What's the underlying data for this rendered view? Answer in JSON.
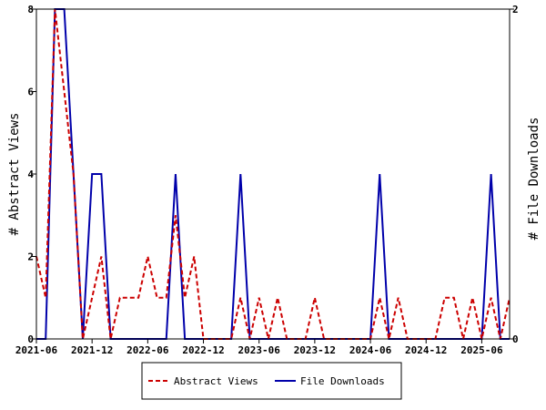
{
  "chart_data": {
    "type": "line",
    "title": "",
    "x_ticks": [
      "2021-06",
      "2021-12",
      "2022-06",
      "2022-12",
      "2023-06",
      "2023-12",
      "2024-06",
      "2024-12",
      "2025-06"
    ],
    "x_range": [
      "2021-06",
      "2025-07"
    ],
    "left_axis": {
      "label": "# Abstract Views",
      "ticks": [
        0,
        2,
        4,
        6,
        8
      ],
      "range": [
        0,
        8
      ]
    },
    "right_axis": {
      "label": "# File Downloads",
      "ticks": [
        0,
        2
      ],
      "range": [
        0,
        2
      ]
    },
    "legend": {
      "placement": "bottom"
    },
    "series": [
      {
        "name": "Abstract Views",
        "axis": "left",
        "color": "#cc0000",
        "style": "dashed",
        "values": [
          2,
          1,
          8,
          6,
          4,
          0,
          1,
          2,
          0,
          1,
          1,
          1,
          2,
          1,
          1,
          3,
          1,
          2,
          0,
          0,
          0,
          0,
          1,
          0,
          1,
          0,
          1,
          0,
          0,
          0,
          1,
          0,
          0,
          0,
          0,
          0,
          0,
          1,
          0,
          1,
          0,
          0,
          0,
          0,
          1,
          1,
          0,
          1,
          0,
          1,
          0,
          1
        ]
      },
      {
        "name": "File Downloads",
        "axis": "right",
        "color": "#0000aa",
        "style": "solid",
        "values": [
          0,
          0,
          2,
          2,
          1,
          0,
          1,
          1,
          0,
          0,
          0,
          0,
          0,
          0,
          0,
          1,
          0,
          0,
          0,
          0,
          0,
          0,
          1,
          0,
          0,
          0,
          0,
          0,
          0,
          0,
          0,
          0,
          0,
          0,
          0,
          0,
          0,
          1,
          0,
          0,
          0,
          0,
          0,
          0,
          0,
          0,
          0,
          0,
          0,
          1,
          0,
          0
        ]
      }
    ]
  }
}
